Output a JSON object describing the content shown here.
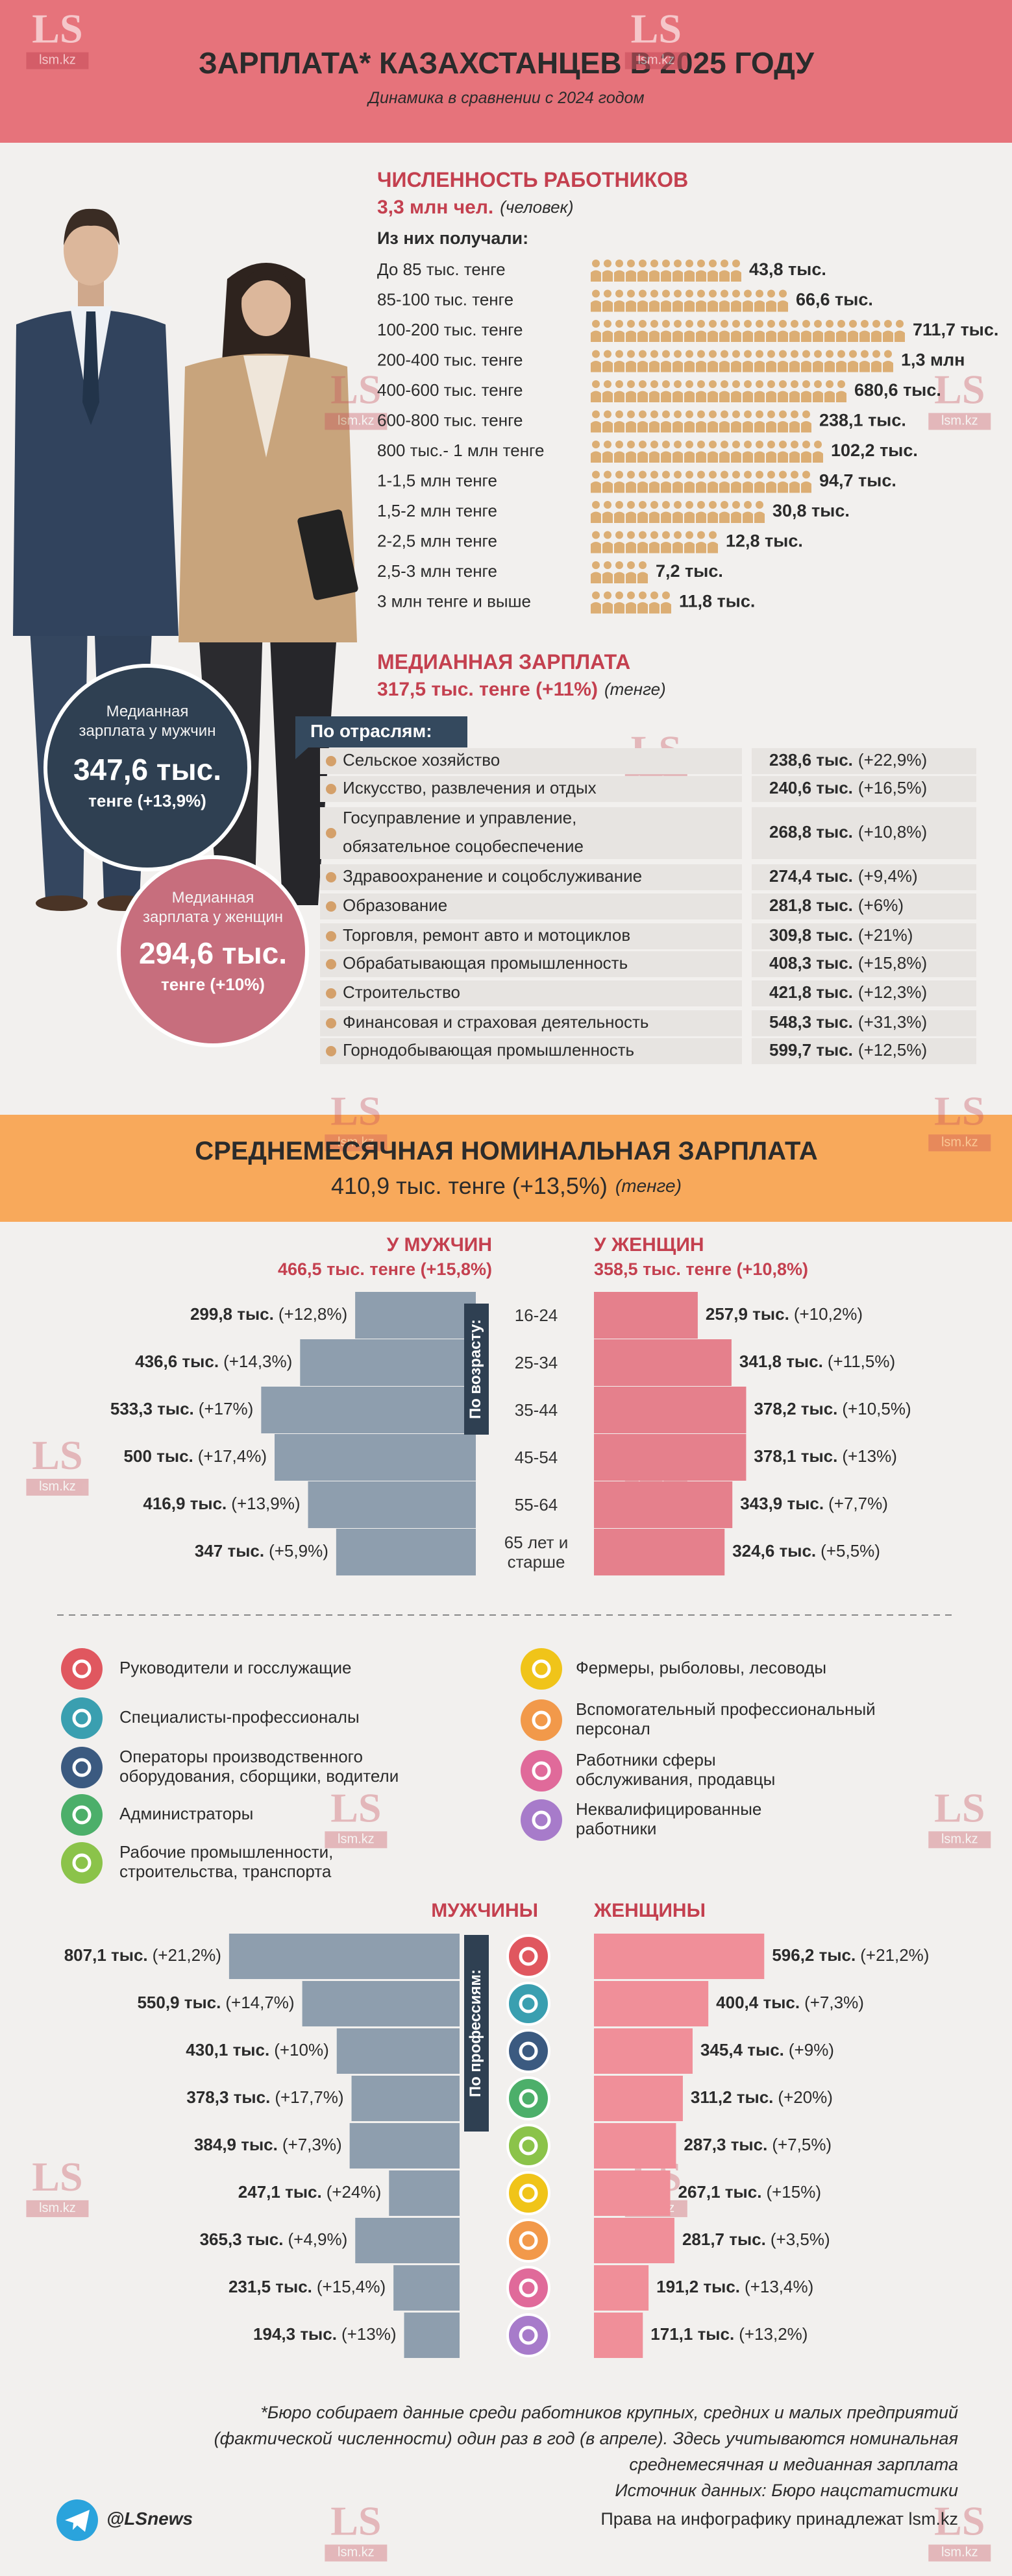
{
  "watermark": {
    "logo": "LS",
    "site": "lsm.kz"
  },
  "header": {
    "title": "ЗАРПЛАТА* КАЗАХСТАНЦЕВ В 2025 ГОДУ",
    "subtitle": "Динамика в сравнении с 2024 годом"
  },
  "workers": {
    "title": "ЧИСЛЕННОСТЬ РАБОТНИКОВ",
    "total": "3,3 млн чел.",
    "total_note": "(человек)",
    "intro": "Из них получали:",
    "rows": [
      {
        "label": "До 85 тыс. тенге",
        "value": "43,8 тыс."
      },
      {
        "label": "85-100 тыс. тенге",
        "value": "66,6 тыс."
      },
      {
        "label": "100-200 тыс. тенге",
        "value": "711,7 тыс."
      },
      {
        "label": "200-400 тыс. тенге",
        "value": "1,3 млн"
      },
      {
        "label": "400-600 тыс. тенге",
        "value": "680,6 тыс."
      },
      {
        "label": "600-800 тыс. тенге",
        "value": "238,1 тыс."
      },
      {
        "label": "800 тыс.- 1 млн тенге",
        "value": "102,2 тыс."
      },
      {
        "label": "1-1,5 млн тенге",
        "value": "94,7 тыс."
      },
      {
        "label": "1,5-2 млн тенге",
        "value": "30,8 тыс."
      },
      {
        "label": "2-2,5 млн тенге",
        "value": "12,8 тыс."
      },
      {
        "label": "2,5-3 млн тенге",
        "value": "7,2 тыс."
      },
      {
        "label": "3 млн тенге и выше",
        "value": "11,8 тыс."
      }
    ]
  },
  "median": {
    "title": "МЕДИАННАЯ ЗАРПЛАТА",
    "value": "317,5 тыс. тенге (+11%)",
    "note": "(тенге)",
    "men": {
      "label": [
        "Медианная",
        "зарплата у мужчин"
      ],
      "value": "347,6 тыс.",
      "change": "тенге (+13,9%)"
    },
    "women": {
      "label": [
        "Медианная",
        "зарплата у женщин"
      ],
      "value": "294,6 тыс.",
      "change": "тенге (+10%)"
    },
    "industries_title": "По отраслям:",
    "industries": [
      {
        "lines": [
          "Сельское хозяйство"
        ],
        "value": "238,6 тыс.",
        "change": "(+22,9%)"
      },
      {
        "lines": [
          "Искусство, развлечения и отдых"
        ],
        "value": "240,6 тыс.",
        "change": "(+16,5%)"
      },
      {
        "lines": [
          "Госуправление и управление,",
          "обязательное соцобеспечение"
        ],
        "value": "268,8 тыс.",
        "change": "(+10,8%)"
      },
      {
        "lines": [
          "Здравоохранение и соцобслуживание"
        ],
        "value": "274,4 тыс.",
        "change": "(+9,4%)"
      },
      {
        "lines": [
          "Образование"
        ],
        "value": "281,8 тыс.",
        "change": "(+6%)"
      },
      {
        "lines": [
          "Торговля, ремонт авто и мотоциклов"
        ],
        "value": "309,8 тыс.",
        "change": "(+21%)"
      },
      {
        "lines": [
          "Обрабатывающая промышленность"
        ],
        "value": "408,3 тыс.",
        "change": "(+15,8%)"
      },
      {
        "lines": [
          "Строительство"
        ],
        "value": "421,8 тыс.",
        "change": "(+12,3%)"
      },
      {
        "lines": [
          "Финансовая и страховая деятельность"
        ],
        "value": "548,3 тыс.",
        "change": "(+31,3%)"
      },
      {
        "lines": [
          "Горнодобывающая промышленность"
        ],
        "value": "599,7 тыс.",
        "change": "(+12,5%)"
      }
    ]
  },
  "average": {
    "title": "СРЕДНЕМЕСЯЧНАЯ НОМИНАЛЬНАЯ ЗАРПЛАТА",
    "value": "410,9 тыс. тенге (+13,5%)",
    "note": "(тенге)"
  },
  "professions": [
    {
      "lines": [
        "Руководители и госслужащие"
      ],
      "color": "#e0575f"
    },
    {
      "lines": [
        "Специалисты-профессионалы"
      ],
      "color": "#3a9fb0"
    },
    {
      "lines": [
        "Операторы производственного",
        "оборудования, сборщики, водители"
      ],
      "color": "#3b5a80"
    },
    {
      "lines": [
        "Администраторы"
      ],
      "color": "#4caf6a"
    },
    {
      "lines": [
        "Рабочие промышленности,",
        "строительства, транспорта"
      ],
      "color": "#8bc34a"
    },
    {
      "lines": [
        "Фермеры, рыболовы, лесоводы"
      ],
      "color": "#f0c419"
    },
    {
      "lines": [
        "Вспомогательный профессиональный",
        "персонал"
      ],
      "color": "#f2994a"
    },
    {
      "lines": [
        "Работники сферы",
        "обслуживания, продавцы"
      ],
      "color": "#e06a9a"
    },
    {
      "lines": [
        "Неквалифицированные",
        "работники"
      ],
      "color": "#a77bca"
    }
  ],
  "chart_data": [
    {
      "type": "butterfly",
      "axis_title": "По возрасту:",
      "categories": [
        "16-24",
        "25-34",
        "35-44",
        "45-54",
        "55-64",
        "65 лет и старше"
      ],
      "series": [
        {
          "name": "У МУЖЧИН",
          "subtitle": "466,5 тыс. тенге (+15,8%)",
          "color": "#8e9eae",
          "values": [
            299.8,
            436.6,
            533.3,
            500,
            416.9,
            347
          ],
          "value_labels": [
            "299,8 тыс.",
            "436,6 тыс.",
            "533,3 тыс.",
            "500 тыс.",
            "416,9 тыс.",
            "347 тыс."
          ],
          "changes": [
            "(+12,8%)",
            "(+14,3%)",
            "(+17%)",
            "(+17,4%)",
            "(+13,9%)",
            "(+5,9%)"
          ]
        },
        {
          "name": "У ЖЕНЩИН",
          "subtitle": "358,5 тыс. тенге (+10,8%)",
          "color": "#e5808c",
          "values": [
            257.9,
            341.8,
            378.2,
            378.1,
            343.9,
            324.6
          ],
          "value_labels": [
            "257,9 тыс.",
            "341,8 тыс.",
            "378,2 тыс.",
            "378,1 тыс.",
            "343,9 тыс.",
            "324,6 тыс."
          ],
          "changes": [
            "(+10,2%)",
            "(+11,5%)",
            "(+10,5%)",
            "(+13%)",
            "(+7,7%)",
            "(+5,5%)"
          ]
        }
      ]
    },
    {
      "type": "butterfly",
      "axis_title": "По профессиям:",
      "categories": [
        null,
        null,
        null,
        null,
        null,
        null,
        null,
        null,
        null
      ],
      "series": [
        {
          "name": "МУЖЧИНЫ",
          "color": "#8e9eae",
          "values": [
            807.1,
            550.9,
            430.1,
            378.3,
            384.9,
            247.1,
            365.3,
            231.5,
            194.3
          ],
          "value_labels": [
            "807,1 тыс.",
            "550,9 тыс.",
            "430,1 тыс.",
            "378,3 тыс.",
            "384,9 тыс.",
            "247,1 тыс.",
            "365,3 тыс.",
            "231,5 тыс.",
            "194,3 тыс."
          ],
          "changes": [
            "(+21,2%)",
            "(+14,7%)",
            "(+10%)",
            "(+17,7%)",
            "(+7,3%)",
            "(+24%)",
            "(+4,9%)",
            "(+15,4%)",
            "(+13%)"
          ]
        },
        {
          "name": "ЖЕНЩИНЫ",
          "color": "#f08f99",
          "values": [
            596.2,
            400.4,
            345.4,
            311.2,
            287.3,
            267.1,
            281.7,
            191.2,
            171.1
          ],
          "value_labels": [
            "596,2 тыс.",
            "400,4 тыс.",
            "345,4 тыс.",
            "311,2 тыс.",
            "287,3 тыс.",
            "267,1 тыс.",
            "281,7 тыс.",
            "191,2 тыс.",
            "171,1 тыс."
          ],
          "changes": [
            "(+21,2%)",
            "(+7,3%)",
            "(+9%)",
            "(+20%)",
            "(+7,5%)",
            "(+15%)",
            "(+3,5%)",
            "(+13,4%)",
            "(+13,2%)"
          ]
        }
      ]
    }
  ],
  "footer": {
    "footnote": [
      "*Бюро собирает данные среди работников крупных, средних и малых предприятий",
      "(фактической численности) один раз в год (в апреле). Здесь учитываются номинальная",
      "среднемесячная и медианная зарплата"
    ],
    "source": "Источник данных: Бюро нацстатистики",
    "rights": "Права на инфографику принадлежат lsm.kz",
    "telegram": "@LSnews"
  }
}
